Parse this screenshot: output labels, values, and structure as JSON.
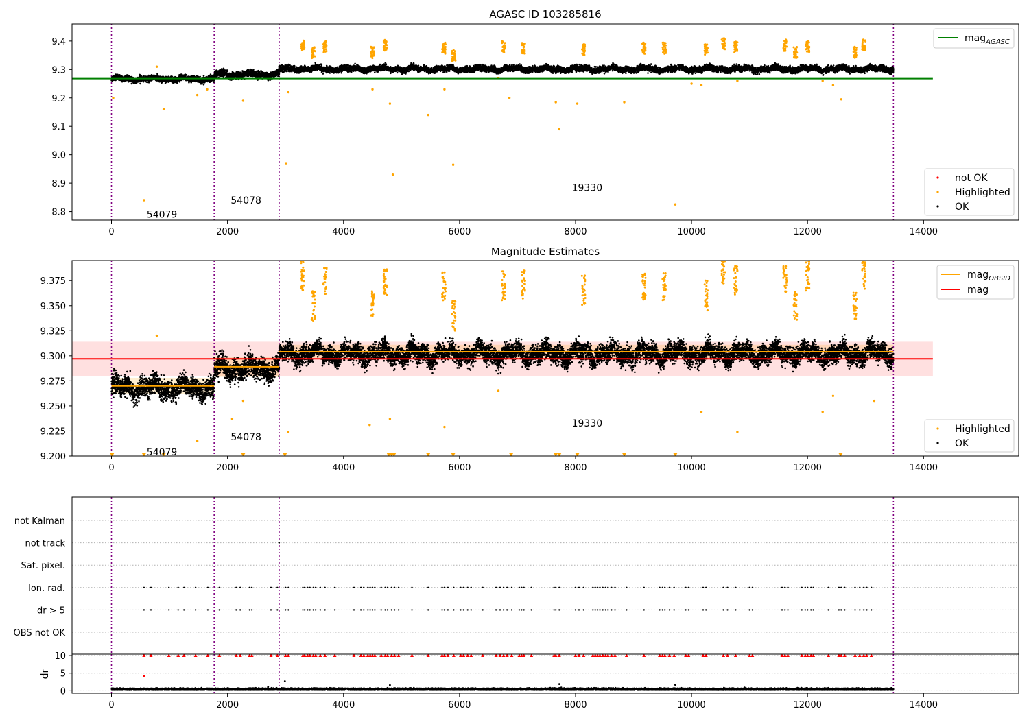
{
  "chart_data": [
    {
      "type": "scatter",
      "title": "AGASC ID 103285816",
      "xlim": [
        -680,
        15640
      ],
      "ylim": [
        8.77,
        9.46
      ],
      "xticks": [
        0,
        2000,
        4000,
        6000,
        8000,
        10000,
        12000,
        14000
      ],
      "yticks": [
        8.8,
        8.9,
        9.0,
        9.1,
        9.2,
        9.3,
        9.4
      ],
      "ytick_labels": [
        "8.8",
        "8.9",
        "9.0",
        "9.1",
        "9.2",
        "9.3",
        "9.4"
      ],
      "vlines": [
        0,
        1770,
        2890,
        13480
      ],
      "hline": {
        "name": "mag",
        "sub": "AGASC",
        "y": 9.268,
        "x0": -680,
        "x1": 14160,
        "color": "#008000"
      },
      "obsids": [
        {
          "label": "54079",
          "x": 870,
          "y": 8.79
        },
        {
          "label": "54078",
          "x": 2320,
          "y": 8.84
        },
        {
          "label": "19330",
          "x": 8200,
          "y": 8.885
        }
      ],
      "ok_segments": [
        {
          "x0": 0,
          "x1": 1770,
          "base": 9.267,
          "spread": 0.013
        },
        {
          "x0": 1770,
          "x1": 2890,
          "base": 9.282,
          "spread": 0.015
        },
        {
          "x0": 2890,
          "x1": 13480,
          "base": 9.302,
          "spread": 0.013
        }
      ],
      "highlight_clusters": [
        [
          3300,
          9.385
        ],
        [
          3480,
          9.36
        ],
        [
          3680,
          9.38
        ],
        [
          4500,
          9.36
        ],
        [
          4720,
          9.385
        ],
        [
          5730,
          9.375
        ],
        [
          5900,
          9.35
        ],
        [
          6760,
          9.38
        ],
        [
          7100,
          9.375
        ],
        [
          8140,
          9.37
        ],
        [
          9180,
          9.375
        ],
        [
          9530,
          9.375
        ],
        [
          10250,
          9.37
        ],
        [
          10550,
          9.39
        ],
        [
          10760,
          9.38
        ],
        [
          11610,
          9.385
        ],
        [
          11790,
          9.36
        ],
        [
          12000,
          9.38
        ],
        [
          12970,
          9.385
        ],
        [
          12820,
          9.36
        ]
      ],
      "highlight_outliers": [
        [
          30,
          9.2
        ],
        [
          560,
          8.84
        ],
        [
          900,
          9.16
        ],
        [
          780,
          9.31
        ],
        [
          1480,
          9.21
        ],
        [
          1650,
          9.23
        ],
        [
          2270,
          9.19
        ],
        [
          3010,
          8.97
        ],
        [
          3050,
          9.22
        ],
        [
          4800,
          9.18
        ],
        [
          4850,
          8.93
        ],
        [
          4500,
          9.23
        ],
        [
          5460,
          9.14
        ],
        [
          5890,
          8.965
        ],
        [
          5740,
          9.23
        ],
        [
          6670,
          9.27
        ],
        [
          6860,
          9.2
        ],
        [
          7720,
          9.09
        ],
        [
          7660,
          9.185
        ],
        [
          8030,
          9.18
        ],
        [
          8840,
          9.185
        ],
        [
          9720,
          8.825
        ],
        [
          10000,
          9.25
        ],
        [
          10170,
          9.245
        ],
        [
          10790,
          9.26
        ],
        [
          12580,
          9.195
        ],
        [
          12440,
          9.245
        ],
        [
          12260,
          9.26
        ]
      ],
      "legend": [
        {
          "label": "not OK",
          "color": "#ff0000"
        },
        {
          "label": "Highlighted",
          "color": "#ffa500"
        },
        {
          "label": "OK",
          "color": "#000000"
        }
      ]
    },
    {
      "type": "scatter",
      "title": "Magnitude Estimates",
      "xlim": [
        -680,
        15640
      ],
      "ylim": [
        9.2,
        9.395
      ],
      "xticks": [
        0,
        2000,
        4000,
        6000,
        8000,
        10000,
        12000,
        14000
      ],
      "yticks": [
        9.2,
        9.225,
        9.25,
        9.275,
        9.3,
        9.325,
        9.35,
        9.375
      ],
      "ytick_labels": [
        "9.200",
        "9.225",
        "9.250",
        "9.275",
        "9.300",
        "9.325",
        "9.350",
        "9.375"
      ],
      "vlines": [
        0,
        1770,
        2890,
        13480
      ],
      "mag": {
        "y": 9.297,
        "band": [
          9.28,
          9.314
        ],
        "x0": -680,
        "x1": 14160,
        "color": "#ff0000"
      },
      "mag_obsid": [
        {
          "x0": 0,
          "x1": 1770,
          "y": 9.27,
          "band": [
            9.262,
            9.278
          ]
        },
        {
          "x0": 1770,
          "x1": 2890,
          "y": 9.289,
          "band": [
            9.279,
            9.299
          ]
        },
        {
          "x0": 2890,
          "x1": 13480,
          "y": 9.304,
          "band": [
            9.297,
            9.311
          ]
        }
      ],
      "obsids": [
        {
          "label": "54079",
          "x": 870,
          "y": 9.204
        },
        {
          "label": "54078",
          "x": 2320,
          "y": 9.219
        },
        {
          "label": "19330",
          "x": 8200,
          "y": 9.233
        }
      ],
      "ok_segments": [
        {
          "x0": 0,
          "x1": 1770,
          "base": 9.268,
          "spread": 0.013
        },
        {
          "x0": 1770,
          "x1": 2890,
          "base": 9.287,
          "spread": 0.014
        },
        {
          "x0": 2890,
          "x1": 13480,
          "base": 9.302,
          "spread": 0.012
        }
      ],
      "highlight_clusters": [
        [
          3300,
          9.38
        ],
        [
          3480,
          9.35
        ],
        [
          3680,
          9.375
        ],
        [
          4500,
          9.35
        ],
        [
          4720,
          9.375
        ],
        [
          5730,
          9.37
        ],
        [
          5900,
          9.34
        ],
        [
          6760,
          9.37
        ],
        [
          7100,
          9.37
        ],
        [
          8140,
          9.365
        ],
        [
          9180,
          9.37
        ],
        [
          9530,
          9.37
        ],
        [
          10250,
          9.36
        ],
        [
          10550,
          9.385
        ],
        [
          10760,
          9.375
        ],
        [
          11610,
          9.375
        ],
        [
          11790,
          9.35
        ],
        [
          12000,
          9.38
        ],
        [
          12970,
          9.38
        ],
        [
          12820,
          9.35
        ]
      ],
      "highlight_outliers": [
        [
          780,
          9.32
        ],
        [
          1480,
          9.215
        ],
        [
          2080,
          9.237
        ],
        [
          2270,
          9.255
        ],
        [
          3050,
          9.224
        ],
        [
          4450,
          9.231
        ],
        [
          4800,
          9.237
        ],
        [
          5740,
          9.229
        ],
        [
          6670,
          9.265
        ],
        [
          10790,
          9.224
        ],
        [
          10170,
          9.244
        ],
        [
          12260,
          9.244
        ],
        [
          12440,
          9.26
        ],
        [
          13150,
          9.255
        ]
      ],
      "lower_markers": [
        10,
        560,
        900,
        2270,
        2990,
        4780,
        4830,
        4870,
        5460,
        5890,
        6890,
        7660,
        7720,
        8030,
        8840,
        9720,
        12570
      ],
      "legend": [
        {
          "label": "mag",
          "sub": "OBSID",
          "color": "#ffa500"
        },
        {
          "label": "mag",
          "color": "#ff0000"
        }
      ],
      "legend_points": [
        {
          "label": "Highlighted",
          "color": "#ffa500"
        },
        {
          "label": "OK",
          "color": "#000000"
        }
      ]
    },
    {
      "type": "scatter",
      "xlim": [
        -680,
        15640
      ],
      "vlines": [
        0,
        1770,
        2890,
        13480
      ],
      "flags": [
        "not Kalman",
        "not track",
        "Sat. pixel.",
        "Ion. rad.",
        "dr > 5",
        "OBS not OK"
      ],
      "flag_points": {
        "not track": [
          2890
        ],
        "Ion. rad.": [
          560,
          680,
          990,
          1150,
          1250,
          1450,
          1660,
          1860,
          2150,
          2220,
          2380,
          2420,
          2750,
          2860,
          3000,
          3050,
          3300,
          3330,
          3380,
          3420,
          3480,
          3520,
          3600,
          3680,
          3850,
          4180,
          4300,
          4350,
          4420,
          4460,
          4500,
          4540,
          4650,
          4720,
          4760,
          4830,
          4880,
          4950,
          5180,
          5460,
          5700,
          5740,
          5800,
          5900,
          6020,
          6070,
          6140,
          6200,
          6400,
          6630,
          6700,
          6760,
          6820,
          6900,
          7030,
          7070,
          7110,
          7240,
          7630,
          7660,
          7720,
          8000,
          8060,
          8140,
          8300,
          8340,
          8380,
          8420,
          8470,
          8520,
          8560,
          8620,
          8680,
          8880,
          9180,
          9450,
          9500,
          9540,
          9620,
          9700,
          9900,
          9950,
          10200,
          10250,
          10550,
          10620,
          10760,
          11000,
          11050,
          11560,
          11610,
          11660,
          11900,
          11960,
          12000,
          12060,
          12100,
          12360,
          12540,
          12580,
          12640,
          12820,
          12900,
          12970,
          13020,
          13100
        ],
        "dr > 5": [
          560,
          680,
          990,
          1150,
          1250,
          1450,
          1660,
          1860,
          2150,
          2220,
          2380,
          2420,
          2750,
          2860,
          3000,
          3050,
          3300,
          3330,
          3380,
          3420,
          3480,
          3520,
          3600,
          3680,
          3850,
          4180,
          4300,
          4350,
          4420,
          4460,
          4500,
          4540,
          4650,
          4720,
          4760,
          4830,
          4880,
          4950,
          5180,
          5460,
          5700,
          5740,
          5800,
          5900,
          6020,
          6070,
          6140,
          6200,
          6400,
          6630,
          6700,
          6760,
          6820,
          6900,
          7030,
          7070,
          7110,
          7240,
          7630,
          7660,
          7720,
          8000,
          8060,
          8140,
          8300,
          8340,
          8380,
          8420,
          8470,
          8520,
          8560,
          8620,
          8680,
          8880,
          9180,
          9450,
          9500,
          9540,
          9620,
          9700,
          9900,
          9950,
          10200,
          10250,
          10550,
          10620,
          10760,
          11000,
          11050,
          11560,
          11610,
          11660,
          11900,
          11960,
          12000,
          12060,
          12100,
          12360,
          12540,
          12580,
          12640,
          12820,
          12900,
          12970,
          13020,
          13100
        ]
      }
    },
    {
      "type": "scatter",
      "xlim": [
        -680,
        15640
      ],
      "ylim": [
        -0.7,
        10.4
      ],
      "ylabel": "dr",
      "xticks": [
        0,
        2000,
        4000,
        6000,
        8000,
        10000,
        12000,
        14000
      ],
      "yticks": [
        0,
        5,
        10
      ],
      "ytick_labels": [
        "0",
        "5",
        "10"
      ],
      "vlines": [
        0,
        1770,
        2890,
        13480
      ],
      "clip_value": 10,
      "ok_base": 0.4,
      "outliers": [
        [
          560,
          4.2
        ],
        [
          2700,
          1.1
        ],
        [
          2990,
          2.7
        ],
        [
          4800,
          1.6
        ],
        [
          7720,
          1.9
        ],
        [
          9720,
          1.7
        ]
      ]
    }
  ]
}
